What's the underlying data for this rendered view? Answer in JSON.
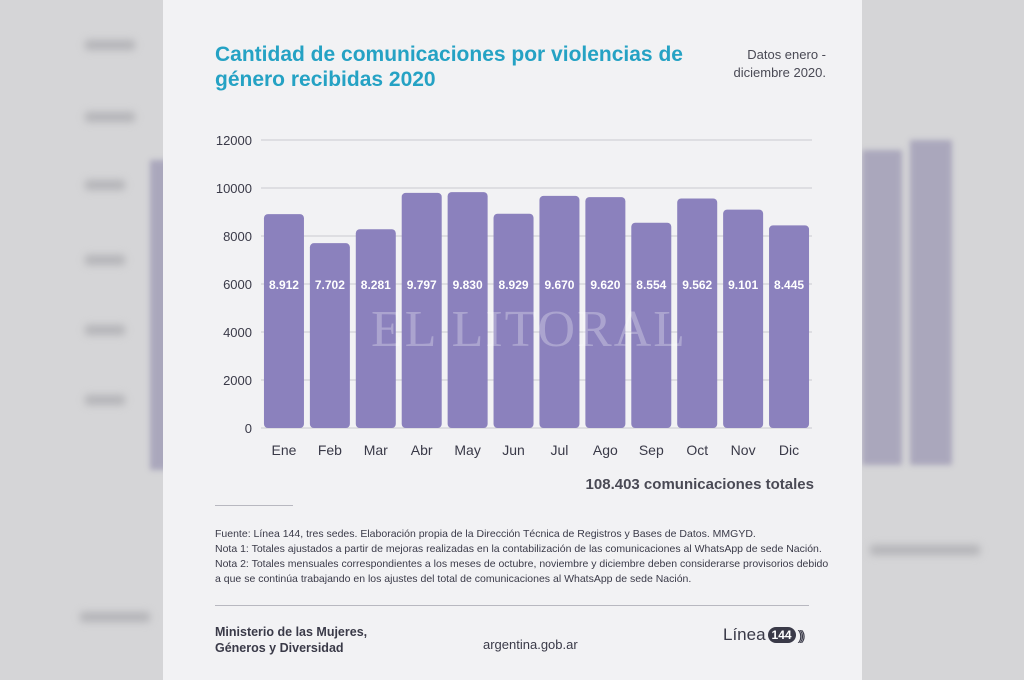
{
  "page": {
    "title": "Cantidad de comunicaciones por violencias de género recibidas 2020",
    "dates": "Datos enero -diciembre 2020.",
    "total": "108.403 comunicaciones totales",
    "notes": [
      "Fuente: Línea 144, tres sedes. Elaboración propia de la Dirección Técnica de Registros y Bases de Datos. MMGYD.",
      "Nota 1: Totales ajustados a partir de mejoras realizadas en la contabilización de las comunicaciones al WhatsApp de sede Nación.",
      "Nota 2: Totales mensuales correspondientes a los meses de octubre, noviembre y diciembre deben considerarse provisorios debido a que se continúa trabajando en los ajustes del total de comunicaciones al WhatsApp de sede Nación."
    ],
    "ministry": [
      "Ministerio de las Mujeres,",
      "Géneros y Diversidad"
    ],
    "site": "argentina.gob.ar",
    "logo": {
      "text": "Línea",
      "number": "144"
    },
    "watermark": "EL LITORAL"
  },
  "chart_data": {
    "type": "bar",
    "categories": [
      "Ene",
      "Feb",
      "Mar",
      "Abr",
      "May",
      "Jun",
      "Jul",
      "Ago",
      "Sep",
      "Oct",
      "Nov",
      "Dic"
    ],
    "values": [
      8912,
      7702,
      8281,
      9797,
      9830,
      8929,
      9670,
      9620,
      8554,
      9562,
      9101,
      8445
    ],
    "value_labels": [
      "8.912",
      "7.702",
      "8.281",
      "9.797",
      "9.830",
      "8.929",
      "9.670",
      "9.620",
      "8.554",
      "9.562",
      "9.101",
      "8.445"
    ],
    "ylim": [
      0,
      12000
    ],
    "yticks": [
      0,
      2000,
      4000,
      6000,
      8000,
      10000,
      12000
    ],
    "grid": true,
    "colors": {
      "bar": "#8b81bd",
      "grid": "#c9c9d0",
      "label": "#ffffff",
      "axis_text": "#3a3a48"
    }
  }
}
